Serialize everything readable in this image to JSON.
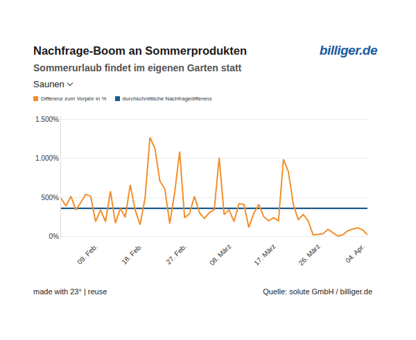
{
  "chart_data": {
    "type": "line",
    "title": "Nachfrage-Boom an Sommerprodukten",
    "subtitle": "Sommerurlaub findet im eigenen Garten statt",
    "filter": "Saunen",
    "logo": "billiger.de",
    "credit": "made with 23° | reuse",
    "source": "Quelle: solute GmbH / billiger.de",
    "categories": [
      null,
      null,
      null,
      null,
      null,
      null,
      null,
      "09. Feb.",
      null,
      null,
      null,
      null,
      null,
      null,
      null,
      null,
      "18. Feb.",
      null,
      null,
      null,
      null,
      null,
      null,
      null,
      null,
      "27. Feb.",
      null,
      null,
      null,
      null,
      null,
      null,
      null,
      null,
      "08. März",
      null,
      null,
      null,
      null,
      null,
      null,
      null,
      null,
      "17. März",
      null,
      null,
      null,
      null,
      null,
      null,
      null,
      null,
      "26. März",
      null,
      null,
      null,
      null,
      null,
      null,
      null,
      null,
      "04. Apr.",
      null
    ],
    "series": [
      {
        "name": "Differenz zum Vorjahr in %",
        "color": "#f28e2b",
        "values": [
          490,
          390,
          515,
          340,
          435,
          540,
          515,
          190,
          340,
          190,
          580,
          170,
          360,
          245,
          660,
          340,
          150,
          490,
          1270,
          1130,
          710,
          610,
          165,
          565,
          1090,
          240,
          290,
          515,
          305,
          230,
          305,
          345,
          1010,
          280,
          340,
          190,
          420,
          410,
          115,
          295,
          410,
          255,
          200,
          240,
          200,
          990,
          830,
          410,
          215,
          280,
          200,
          20,
          25,
          35,
          90,
          50,
          5,
          20,
          70,
          95,
          110,
          85,
          20
        ]
      },
      {
        "name": "durchschnittliche Nachfragedifferenz",
        "color": "#1b5b8c",
        "values": [
          360,
          360,
          360,
          360,
          360,
          360,
          360,
          360,
          360,
          360,
          360,
          360,
          360,
          360,
          360,
          360,
          360,
          360,
          360,
          360,
          360,
          360,
          360,
          360,
          360,
          360,
          360,
          360,
          360,
          360,
          360,
          360,
          360,
          360,
          360,
          360,
          360,
          360,
          360,
          360,
          360,
          360,
          360,
          360,
          360,
          360,
          360,
          360,
          360,
          360,
          360,
          360,
          360,
          360,
          360,
          360,
          360,
          360,
          360,
          360,
          360,
          360,
          360
        ]
      }
    ],
    "ylim": [
      -50,
      1550
    ],
    "yticks": [
      {
        "value": 0,
        "label": "0%"
      },
      {
        "value": 500,
        "label": "500%"
      },
      {
        "value": 1000,
        "label": "1.000%"
      },
      {
        "value": 1500,
        "label": "1.500%"
      }
    ],
    "grid": true
  }
}
